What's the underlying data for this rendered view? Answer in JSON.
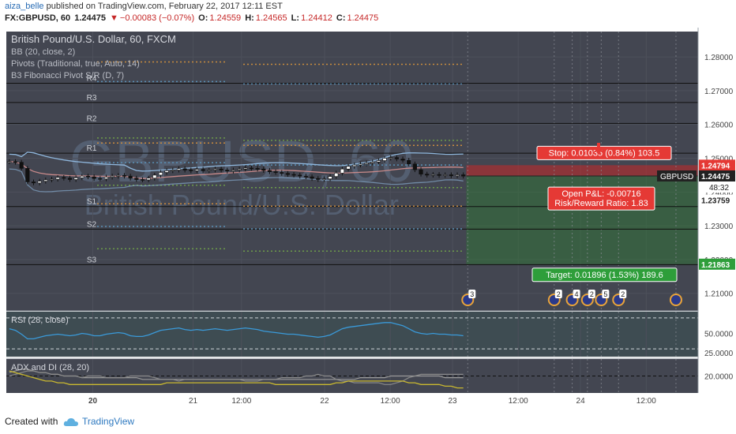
{
  "header": {
    "author": "aiza_belle",
    "published_text": " published on TradingView.com, February 22, 2017 12:11 EST",
    "symbol": "FX:GBPUSD, 60",
    "last": "1.24475",
    "change_arrow": "▼",
    "change": "−0.00083 (−0.07%)",
    "o_label": "O:",
    "o": "1.24559",
    "h_label": "H:",
    "h": "1.24565",
    "l_label": "L:",
    "l": "1.24412",
    "c_label": "C:",
    "c": "1.24475"
  },
  "footer": {
    "created_with": "Created with",
    "brand": "TradingView",
    "logo_icon": "tradingview-cloud-icon"
  },
  "colors": {
    "panel_bg": "#434651",
    "rsi_bg": "#3e4c52",
    "grid": "#4d505b",
    "up": "#ffffff",
    "down": "#111111",
    "bb_upper": "#8fb7dd",
    "bb_basis": "#c98a8a",
    "rsi_line": "#3a9ad9",
    "stop_red": "#e53935",
    "target_green": "#2e9e3a",
    "pivot_green": "#6d9b4a",
    "pivot_orange": "#c98b3f",
    "pivot_blue": "#5a8fb4",
    "adx_grey": "#999999",
    "di_yellow": "#c9b830"
  },
  "chart_data": {
    "type": "candlestick",
    "title": "British Pound/U.S. Dollar, 60, FXCM",
    "watermark": "GBPUSD, 60",
    "watermark_sub": "British Pound/U.S. Dollar",
    "symbol_label": "GBPUSD",
    "current_price": "1.24475",
    "countdown": "48:32",
    "indicators": [
      "BB (20, close, 2)",
      "Pivots (Traditional, true, Auto, 14)",
      "B3 Fibonacci Pivot S/R (D, 7)"
    ],
    "price_ticks": [
      "1.28000",
      "1.27000",
      "1.26000",
      "1.25000",
      "1.24000",
      "1.23000",
      "1.22000",
      "1.21000"
    ],
    "price_tick_values": [
      1.28,
      1.27,
      1.26,
      1.25,
      1.24,
      1.23,
      1.22,
      1.21
    ],
    "ylim": [
      1.2048,
      1.2875
    ],
    "x_ticks": [
      {
        "label": "20",
        "bold": true,
        "t": 0.125
      },
      {
        "label": "21",
        "bold": false,
        "t": 0.27
      },
      {
        "label": "12:00",
        "bold": false,
        "t": 0.34
      },
      {
        "label": "22",
        "bold": false,
        "t": 0.46
      },
      {
        "label": "12:00",
        "bold": false,
        "t": 0.555
      },
      {
        "label": "23",
        "bold": false,
        "t": 0.645
      },
      {
        "label": "12:00",
        "bold": false,
        "t": 0.74
      },
      {
        "label": "24",
        "bold": false,
        "t": 0.83
      },
      {
        "label": "12:00",
        "bold": false,
        "t": 0.925
      }
    ],
    "pivot_levels": [
      {
        "label": "R4",
        "value": 1.2722
      },
      {
        "label": "R3",
        "value": 1.2665
      },
      {
        "label": "R2",
        "value": 1.2603
      },
      {
        "label": "R1",
        "value": 1.2515
      },
      {
        "label": "S1",
        "value": 1.2357
      },
      {
        "label": "S2",
        "value": 1.229
      },
      {
        "label": "S3",
        "value": 1.2185
      }
    ],
    "fib_dotted_levels": [
      1.2785,
      1.2727,
      1.256,
      1.2545,
      1.2487,
      1.242,
      1.2365,
      1.2298,
      1.2232
    ],
    "position": {
      "entry": "1.24475",
      "entry_value": 1.24475,
      "stop": "1.24794",
      "stop_value": 1.24794,
      "target": "1.21863",
      "target_value": 1.21863,
      "extra_level": "1.23759",
      "extra_level_value": 1.23759,
      "stop_label": "Stop: 0.01035 (0.84%) 103.5",
      "pnl_label": "Open P&L: -0.00716",
      "rr_label": "Risk/Reward Ratio: 1.83",
      "target_label": "Target: 0.01896 (1.53%) 189.6"
    },
    "events": [
      {
        "t": 0.667,
        "label": "3"
      },
      {
        "t": 0.792,
        "label": "2"
      },
      {
        "t": 0.818,
        "label": "4"
      },
      {
        "t": 0.84,
        "label": "2"
      },
      {
        "t": 0.86,
        "label": "5"
      },
      {
        "t": 0.885,
        "label": "2"
      },
      {
        "t": 0.968,
        "label": ""
      }
    ],
    "candles": [
      1.249,
      1.2488,
      1.247,
      1.243,
      1.2427,
      1.2432,
      1.2436,
      1.2438,
      1.2443,
      1.2441,
      1.2437,
      1.2442,
      1.2447,
      1.2445,
      1.244,
      1.2439,
      1.2444,
      1.2447,
      1.2449,
      1.2447,
      1.2441,
      1.2437,
      1.2436,
      1.2441,
      1.245,
      1.2458,
      1.2463,
      1.2465,
      1.2469,
      1.2465,
      1.2463,
      1.2467,
      1.2463,
      1.2465,
      1.2468,
      1.2465,
      1.2462,
      1.2465,
      1.2468,
      1.2471,
      1.247,
      1.2468,
      1.2464,
      1.246,
      1.2458,
      1.2455,
      1.2452,
      1.245,
      1.2447,
      1.2445,
      1.244,
      1.2437,
      1.2439,
      1.2446,
      1.2456,
      1.2468,
      1.2476,
      1.248,
      1.2483,
      1.2486,
      1.2489,
      1.2493,
      1.25,
      1.2502,
      1.2498,
      1.2494,
      1.2483,
      1.2466,
      1.2453,
      1.245,
      1.2452,
      1.2449,
      1.2451,
      1.2448,
      1.2451,
      1.2447
    ],
    "rsi": {
      "label": "RSI (28, close)",
      "ticks": [
        "50.0000",
        "25.0000"
      ],
      "tick_values": [
        50,
        25
      ],
      "ylim": [
        20,
        78
      ],
      "bands": [
        70,
        30
      ],
      "values": [
        56,
        54,
        49,
        43,
        43,
        45,
        47,
        48,
        49,
        48,
        47,
        48,
        50,
        49,
        47,
        47,
        49,
        50,
        51,
        50,
        47,
        46,
        46,
        48,
        51,
        54,
        55,
        56,
        57,
        55,
        54,
        55,
        54,
        55,
        56,
        55,
        54,
        55,
        56,
        57,
        56,
        55,
        53,
        52,
        51,
        50,
        49,
        49,
        48,
        47,
        46,
        45,
        46,
        48,
        52,
        56,
        58,
        59,
        60,
        61,
        62,
        63,
        64,
        64,
        62,
        60,
        56,
        52,
        50,
        49,
        50,
        49,
        49,
        48,
        48,
        47
      ]
    },
    "adx": {
      "label": "ADX and DI (28, 20)",
      "ticks": [
        "20.0000"
      ],
      "tick_values": [
        20
      ],
      "ylim": [
        10,
        30
      ],
      "level": 20,
      "adx_values": [
        22,
        23,
        24,
        24,
        23,
        22,
        22,
        21,
        21,
        20,
        20,
        20,
        19,
        19,
        19,
        19,
        19,
        19,
        19,
        19,
        19,
        19,
        18,
        18,
        18,
        18,
        18,
        18,
        18,
        18,
        18,
        18,
        18,
        18,
        18,
        18,
        18,
        18,
        18,
        18,
        18,
        18,
        18,
        18,
        18,
        18,
        18,
        18,
        18,
        18,
        18,
        18,
        18,
        18,
        18,
        18,
        18,
        18,
        19,
        19,
        19,
        19,
        19,
        20,
        20,
        20,
        20,
        20,
        20,
        20,
        20,
        20,
        19,
        19,
        19,
        19
      ],
      "di_plus_values": [
        23,
        22,
        21,
        20,
        19,
        18,
        17,
        17,
        16,
        16,
        15,
        15,
        15,
        15,
        15,
        15,
        15,
        15,
        15,
        15,
        15,
        15,
        15,
        15,
        15,
        15,
        16,
        16,
        16,
        16,
        16,
        16,
        16,
        16,
        16,
        16,
        16,
        16,
        16,
        16,
        16,
        16,
        16,
        16,
        15,
        15,
        15,
        15,
        15,
        15,
        15,
        15,
        15,
        15,
        16,
        16,
        17,
        17,
        17,
        17,
        17,
        17,
        17,
        17,
        17,
        17,
        16,
        16,
        15,
        15,
        15,
        15,
        14,
        14,
        13,
        13
      ],
      "di_minus_values": [
        20,
        21,
        22,
        23,
        23,
        22,
        22,
        21,
        21,
        20,
        20,
        20,
        19,
        20,
        20,
        20,
        19,
        19,
        19,
        19,
        20,
        20,
        20,
        20,
        19,
        18,
        18,
        18,
        17,
        18,
        18,
        18,
        18,
        18,
        18,
        18,
        18,
        18,
        18,
        17,
        17,
        17,
        18,
        18,
        18,
        19,
        19,
        19,
        19,
        20,
        20,
        21,
        20,
        20,
        18,
        17,
        17,
        16,
        16,
        16,
        16,
        16,
        15,
        15,
        16,
        17,
        19,
        20,
        21,
        21,
        21,
        21,
        21,
        21,
        21,
        21
      ]
    }
  }
}
